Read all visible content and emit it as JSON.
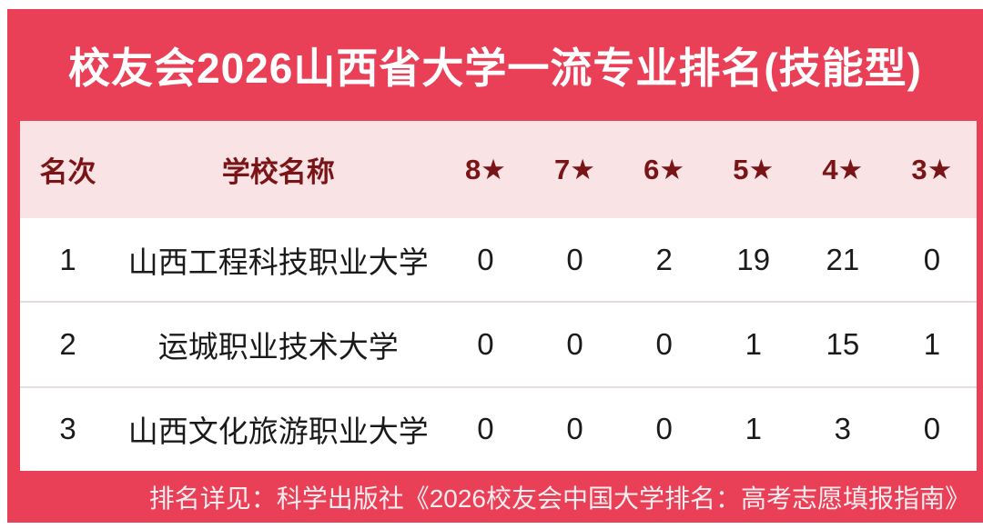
{
  "title": "校友会2026山西省大学一流专业排名(技能型)",
  "colors": {
    "background_red": "#E94057",
    "header_pink": "#F9E3E5",
    "header_text_maroon": "#7A1517",
    "row_text": "#1A1A1A",
    "divider": "#E6DEDE",
    "title_text": "#FFFFFF",
    "footer_text": "#FBEDEF"
  },
  "table": {
    "columns": [
      "名次",
      "学校名称",
      "8★",
      "7★",
      "6★",
      "5★",
      "4★",
      "3★"
    ],
    "rows": [
      {
        "rank": "1",
        "school": "山西工程科技职业大学",
        "star_counts": [
          "0",
          "0",
          "2",
          "19",
          "21",
          "0"
        ]
      },
      {
        "rank": "2",
        "school": "运城职业技术大学",
        "star_counts": [
          "0",
          "0",
          "0",
          "1",
          "15",
          "1"
        ]
      },
      {
        "rank": "3",
        "school": "山西文化旅游职业大学",
        "star_counts": [
          "0",
          "0",
          "0",
          "1",
          "3",
          "0"
        ]
      }
    ]
  },
  "footer": {
    "note": "排名详见：科学出版社《2026校友会中国大学排名：高考志愿填报指南》"
  },
  "chart_data": {
    "type": "table",
    "title": "校友会2026山西省大学一流专业排名(技能型)",
    "columns": [
      "名次",
      "学校名称",
      "8★",
      "7★",
      "6★",
      "5★",
      "4★",
      "3★"
    ],
    "rows": [
      [
        1,
        "山西工程科技职业大学",
        0,
        0,
        2,
        19,
        21,
        0
      ],
      [
        2,
        "运城职业技术大学",
        0,
        0,
        0,
        1,
        15,
        1
      ],
      [
        3,
        "山西文化旅游职业大学",
        0,
        0,
        0,
        1,
        3,
        0
      ]
    ],
    "source_note": "排名详见：科学出版社《2026校友会中国大学排名：高考志愿填报指南》"
  }
}
